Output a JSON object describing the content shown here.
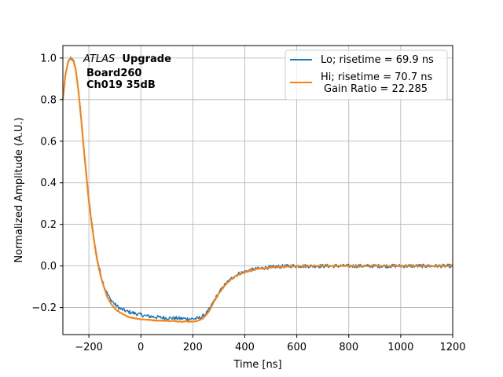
{
  "chart_data": {
    "type": "line",
    "xlabel": "Time [ns]",
    "ylabel": "Normalized Amplitude (A.U.)",
    "xlim": [
      -300,
      1200
    ],
    "ylim": [
      -0.33,
      1.06
    ],
    "xticks": [
      -200,
      0,
      200,
      400,
      600,
      800,
      1000,
      1200
    ],
    "yticks": [
      -0.2,
      0.0,
      0.2,
      0.4,
      0.6,
      0.8,
      1.0
    ],
    "xtick_labels": [
      "−200",
      "0",
      "200",
      "400",
      "600",
      "800",
      "1000",
      "1200"
    ],
    "ytick_labels": [
      "−0.2",
      "0.0",
      "0.2",
      "0.4",
      "0.6",
      "0.8",
      "1.0"
    ],
    "grid": true,
    "legend_position": "top-right",
    "annotation": {
      "experiment": "ATLAS",
      "status": "Upgrade",
      "board": "Board260",
      "channel": "Ch019 35dB"
    },
    "series": [
      {
        "name": "Lo; risetime = 69.9 ns",
        "color": "#1f77b4",
        "noisy": true,
        "x": [
          -300,
          -290,
          -280,
          -270,
          -260,
          -250,
          -240,
          -230,
          -220,
          -210,
          -200,
          -190,
          -180,
          -170,
          -160,
          -150,
          -140,
          -130,
          -120,
          -110,
          -100,
          -90,
          -80,
          -70,
          -60,
          -50,
          -40,
          -30,
          -20,
          -10,
          0,
          20,
          40,
          60,
          80,
          100,
          120,
          140,
          160,
          180,
          200,
          220,
          235,
          250,
          260,
          270,
          280,
          290,
          300,
          320,
          340,
          360,
          380,
          400,
          420,
          440,
          460,
          480,
          500,
          520,
          540,
          560,
          580,
          600,
          650,
          700,
          750,
          800,
          850,
          900,
          950,
          1000,
          1050,
          1100,
          1150,
          1200
        ],
        "y": [
          0.8,
          0.92,
          0.98,
          1.0,
          0.99,
          0.94,
          0.84,
          0.72,
          0.58,
          0.45,
          0.32,
          0.22,
          0.13,
          0.05,
          -0.01,
          -0.06,
          -0.1,
          -0.13,
          -0.155,
          -0.17,
          -0.185,
          -0.195,
          -0.205,
          -0.21,
          -0.215,
          -0.22,
          -0.223,
          -0.226,
          -0.229,
          -0.232,
          -0.235,
          -0.24,
          -0.243,
          -0.246,
          -0.248,
          -0.25,
          -0.251,
          -0.252,
          -0.253,
          -0.254,
          -0.254,
          -0.252,
          -0.245,
          -0.23,
          -0.215,
          -0.195,
          -0.17,
          -0.15,
          -0.13,
          -0.095,
          -0.07,
          -0.05,
          -0.035,
          -0.028,
          -0.02,
          -0.015,
          -0.012,
          -0.008,
          -0.006,
          -0.004,
          -0.002,
          -0.001,
          0.0,
          0.0,
          0.0,
          0.0,
          0.0,
          0.0,
          0.0,
          0.0,
          0.0,
          0.0,
          0.0,
          0.0,
          0.0,
          0.0
        ]
      },
      {
        "name": "Hi; risetime = 70.7 ns",
        "subname": "Gain Ratio = 22.285",
        "color": "#ff7f0e",
        "noisy": false,
        "x": [
          -300,
          -290,
          -280,
          -270,
          -260,
          -250,
          -240,
          -230,
          -220,
          -210,
          -200,
          -190,
          -180,
          -170,
          -160,
          -150,
          -140,
          -130,
          -120,
          -110,
          -100,
          -90,
          -80,
          -70,
          -60,
          -50,
          -40,
          -30,
          -20,
          -10,
          0,
          20,
          40,
          60,
          80,
          100,
          120,
          140,
          160,
          180,
          200,
          220,
          235,
          250,
          260,
          270,
          280,
          290,
          300,
          320,
          340,
          360,
          380,
          400,
          420,
          440,
          460,
          480,
          500,
          520,
          540,
          560,
          580,
          600,
          650,
          700,
          750,
          800,
          850,
          900,
          950,
          1000,
          1050,
          1100,
          1150,
          1200
        ],
        "y": [
          0.8,
          0.92,
          0.98,
          1.0,
          0.99,
          0.94,
          0.84,
          0.71,
          0.57,
          0.44,
          0.31,
          0.21,
          0.12,
          0.04,
          -0.02,
          -0.07,
          -0.11,
          -0.145,
          -0.17,
          -0.19,
          -0.205,
          -0.215,
          -0.225,
          -0.232,
          -0.238,
          -0.243,
          -0.247,
          -0.25,
          -0.252,
          -0.254,
          -0.256,
          -0.258,
          -0.26,
          -0.262,
          -0.263,
          -0.264,
          -0.265,
          -0.266,
          -0.267,
          -0.267,
          -0.267,
          -0.264,
          -0.255,
          -0.238,
          -0.222,
          -0.2,
          -0.175,
          -0.153,
          -0.133,
          -0.098,
          -0.072,
          -0.052,
          -0.038,
          -0.03,
          -0.022,
          -0.017,
          -0.013,
          -0.01,
          -0.008,
          -0.006,
          -0.004,
          -0.003,
          -0.002,
          -0.001,
          0.0,
          0.0,
          0.0,
          0.0,
          0.0,
          0.0,
          0.0,
          0.0,
          0.0,
          0.0,
          0.0,
          0.0
        ]
      }
    ]
  }
}
